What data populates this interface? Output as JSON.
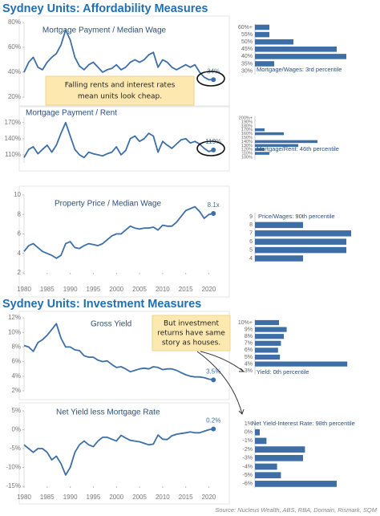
{
  "sections": [
    "Sydney Units: Affordability Measures",
    "Sydney Units: Investment Measures"
  ],
  "source": "Source: Nucleus Wealth, ABS, RBA, Domain, Rismark, SQM",
  "chart_data": [
    {
      "type": "line",
      "title": "Mortgage Payment / Median Wage",
      "color": "#3d6fa6",
      "x": [
        1980,
        1981,
        1982,
        1983,
        1984,
        1985,
        1986,
        1987,
        1988,
        1989,
        1990,
        1991,
        1992,
        1993,
        1994,
        1995,
        1996,
        1997,
        1998,
        1999,
        2000,
        2001,
        2002,
        2003,
        2004,
        2005,
        2006,
        2007,
        2008,
        2009,
        2010,
        2011,
        2012,
        2013,
        2014,
        2015,
        2016,
        2017,
        2018,
        2019,
        2020,
        2021
      ],
      "values": [
        40,
        48,
        52,
        44,
        42,
        48,
        52,
        55,
        62,
        74,
        66,
        52,
        45,
        42,
        46,
        48,
        44,
        40,
        42,
        43,
        46,
        42,
        44,
        48,
        50,
        48,
        50,
        54,
        56,
        44,
        50,
        48,
        44,
        42,
        44,
        46,
        44,
        46,
        40,
        36,
        34,
        34
      ],
      "value_labels": [
        null,
        null,
        null,
        null,
        null,
        null,
        null,
        null,
        null,
        null,
        null,
        null,
        null,
        null,
        null,
        null,
        null,
        null,
        null,
        null,
        null,
        null,
        null,
        null,
        null,
        null,
        null,
        null,
        null,
        null,
        null,
        null,
        null,
        null,
        null,
        null,
        null,
        null,
        null,
        null,
        null,
        "34%"
      ],
      "xlim": [
        1980,
        2022
      ],
      "ylim": [
        20,
        80
      ],
      "yticks": [
        {
          "value": 20,
          "label": "20%"
        },
        {
          "value": 40,
          "label": "40%"
        },
        {
          "value": 60,
          "label": "60%"
        },
        {
          "value": 80,
          "label": "80%"
        }
      ],
      "annotation": [
        "Falling rents and interest rates",
        "mean units look cheap."
      ]
    },
    {
      "type": "bar",
      "orientation": "horizontal",
      "color": "#3d6fa6",
      "categories": [
        "60%+",
        "55%",
        "50%",
        "45%",
        "40%",
        "35%",
        "30%"
      ],
      "values": [
        1.5,
        1.5,
        4,
        8.5,
        9.5,
        2,
        0
      ],
      "xlim": [
        0,
        10
      ],
      "annotation": "Mortgage/Wages: 3rd percentile"
    },
    {
      "type": "line",
      "title": "Mortgage Payment / Rent",
      "color": "#3d6fa6",
      "x": [
        1980,
        1981,
        1982,
        1983,
        1984,
        1985,
        1986,
        1987,
        1988,
        1989,
        1990,
        1991,
        1992,
        1993,
        1994,
        1995,
        1996,
        1997,
        1998,
        1999,
        2000,
        2001,
        2002,
        2003,
        2004,
        2005,
        2006,
        2007,
        2008,
        2009,
        2010,
        2011,
        2012,
        2013,
        2014,
        2015,
        2016,
        2017,
        2018,
        2019,
        2020,
        2021
      ],
      "values": [
        105,
        120,
        125,
        112,
        120,
        128,
        115,
        128,
        150,
        170,
        145,
        120,
        110,
        105,
        115,
        112,
        110,
        108,
        112,
        115,
        125,
        110,
        118,
        140,
        145,
        135,
        140,
        150,
        145,
        115,
        135,
        128,
        122,
        130,
        138,
        140,
        132,
        135,
        130,
        122,
        116,
        119
      ],
      "value_labels": [
        null,
        null,
        null,
        null,
        null,
        null,
        null,
        null,
        null,
        null,
        null,
        null,
        null,
        null,
        null,
        null,
        null,
        null,
        null,
        null,
        null,
        null,
        null,
        null,
        null,
        null,
        null,
        null,
        null,
        null,
        null,
        null,
        null,
        null,
        null,
        null,
        null,
        null,
        null,
        null,
        null,
        "119%"
      ],
      "xlim": [
        1980,
        2022
      ],
      "ylim": [
        95,
        180
      ],
      "yticks": [
        {
          "value": 110,
          "label": "110%"
        },
        {
          "value": 140,
          "label": "140%"
        },
        {
          "value": 170,
          "label": "170%"
        }
      ]
    },
    {
      "type": "bar",
      "orientation": "horizontal",
      "color": "#3d6fa6",
      "categories": [
        "200%+",
        "190%",
        "180%",
        "170%",
        "160%",
        "150%",
        "140%",
        "130%",
        "120%",
        "110%",
        "100%"
      ],
      "values": [
        0,
        0,
        0,
        1,
        3,
        0,
        6.5,
        4.5,
        1,
        1.5,
        0
      ],
      "xlim": [
        0,
        10
      ],
      "annotation": "Mortgage/Rent: 46th percentile"
    },
    {
      "type": "line",
      "title": "Property Price / Median Wage",
      "color": "#3d6fa6",
      "x": [
        1980,
        1981,
        1982,
        1983,
        1984,
        1985,
        1986,
        1987,
        1988,
        1989,
        1990,
        1991,
        1992,
        1993,
        1994,
        1995,
        1996,
        1997,
        1998,
        1999,
        2000,
        2001,
        2002,
        2003,
        2004,
        2005,
        2006,
        2007,
        2008,
        2009,
        2010,
        2011,
        2012,
        2013,
        2014,
        2015,
        2016,
        2017,
        2018,
        2019,
        2020,
        2021
      ],
      "values": [
        4.2,
        4.8,
        5,
        4.6,
        4.2,
        4,
        3.8,
        3.5,
        3.8,
        5,
        5.2,
        4.6,
        4.5,
        4.8,
        5,
        4.9,
        4.8,
        5,
        5.4,
        5.8,
        6,
        6,
        6.4,
        6.8,
        6.6,
        6.5,
        6.6,
        6.6,
        6.7,
        6.4,
        6.9,
        6.8,
        6.8,
        7.2,
        7.8,
        8.4,
        8.6,
        8.8,
        8.3,
        7.6,
        8,
        8.1
      ],
      "value_labels": [
        null,
        null,
        null,
        null,
        null,
        null,
        null,
        null,
        null,
        null,
        null,
        null,
        null,
        null,
        null,
        null,
        null,
        null,
        null,
        null,
        null,
        null,
        null,
        null,
        null,
        null,
        null,
        null,
        null,
        null,
        null,
        null,
        null,
        null,
        null,
        null,
        null,
        null,
        null,
        null,
        null,
        "8.1x"
      ],
      "xlim": [
        1980,
        2022
      ],
      "ylim": [
        2,
        10
      ],
      "yticks": [
        2,
        4,
        6,
        8,
        10
      ],
      "xticks": [
        1980,
        1985,
        1990,
        1995,
        2000,
        2005,
        2010,
        2015,
        2020
      ]
    },
    {
      "type": "bar",
      "orientation": "horizontal",
      "color": "#3d6fa6",
      "categories": [
        "9",
        "8",
        "7",
        "6",
        "5",
        "4"
      ],
      "values": [
        0,
        5,
        10,
        9.5,
        9.5,
        5
      ],
      "xlim": [
        0,
        10
      ],
      "annotation": "Price/Wages: 90th percentile"
    },
    {
      "type": "line",
      "title": "Gross Yield",
      "color": "#3d6fa6",
      "x": [
        1980,
        1981,
        1982,
        1983,
        1984,
        1985,
        1986,
        1987,
        1988,
        1989,
        1990,
        1991,
        1992,
        1993,
        1994,
        1995,
        1996,
        1997,
        1998,
        1999,
        2000,
        2001,
        2002,
        2003,
        2004,
        2005,
        2006,
        2007,
        2008,
        2009,
        2010,
        2011,
        2012,
        2013,
        2014,
        2015,
        2016,
        2017,
        2018,
        2019,
        2020,
        2021
      ],
      "values": [
        8.2,
        8,
        7.4,
        8.6,
        9,
        9.6,
        10.4,
        11.2,
        9.2,
        8,
        8,
        7.6,
        7.5,
        6.8,
        6.6,
        6.6,
        6.2,
        6,
        6.1,
        5.6,
        5.2,
        5.3,
        5,
        4.6,
        4.8,
        5,
        5.1,
        5,
        5.3,
        5.2,
        4.9,
        5,
        5,
        4.8,
        4.5,
        4.2,
        4,
        3.9,
        3.9,
        3.8,
        3.6,
        3.5
      ],
      "value_labels": [
        null,
        null,
        null,
        null,
        null,
        null,
        null,
        null,
        null,
        null,
        null,
        null,
        null,
        null,
        null,
        null,
        null,
        null,
        null,
        null,
        null,
        null,
        null,
        null,
        null,
        null,
        null,
        null,
        null,
        null,
        null,
        null,
        null,
        null,
        null,
        null,
        null,
        null,
        null,
        null,
        null,
        "3.5%"
      ],
      "xlim": [
        1980,
        2022
      ],
      "ylim": [
        2,
        12
      ],
      "yticks": [
        {
          "value": 2,
          "label": "2%"
        },
        {
          "value": 4,
          "label": "4%"
        },
        {
          "value": 6,
          "label": "6%"
        },
        {
          "value": 8,
          "label": "8%"
        },
        {
          "value": 10,
          "label": "10%"
        },
        {
          "value": 12,
          "label": "12%"
        }
      ],
      "annotation": [
        "But investment",
        "returns have same",
        "story as houses."
      ]
    },
    {
      "type": "bar",
      "orientation": "horizontal",
      "color": "#3d6fa6",
      "categories": [
        "10%+",
        "9%",
        "8%",
        "7%",
        "6%",
        "5%",
        "4%",
        "3%"
      ],
      "values": [
        2.5,
        3.3,
        3,
        2.7,
        2.4,
        2.6,
        9.6,
        0
      ],
      "xlim": [
        0,
        10
      ],
      "annotation": "Yield: 0th percentile"
    },
    {
      "type": "line",
      "title": "Net Yield less Mortgage Rate",
      "color": "#3d6fa6",
      "x": [
        1980,
        1981,
        1982,
        1983,
        1984,
        1985,
        1986,
        1987,
        1988,
        1989,
        1990,
        1991,
        1992,
        1993,
        1994,
        1995,
        1996,
        1997,
        1998,
        1999,
        2000,
        2001,
        2002,
        2003,
        2004,
        2005,
        2006,
        2007,
        2008,
        2009,
        2010,
        2011,
        2012,
        2013,
        2014,
        2015,
        2016,
        2017,
        2018,
        2019,
        2020,
        2021
      ],
      "values": [
        -4,
        -5,
        -6,
        -5,
        -5,
        -6,
        -8,
        -7,
        -9,
        -12,
        -10,
        -6,
        -4,
        -3,
        -4,
        -4.5,
        -3,
        -2,
        -2,
        -2.5,
        -3,
        -1.5,
        -2.2,
        -2.8,
        -3,
        -3.2,
        -3.6,
        -4,
        -3.8,
        -1.4,
        -2.5,
        -2.6,
        -1.6,
        -1.2,
        -1,
        -0.8,
        -0.6,
        -0.8,
        -0.8,
        -0.4,
        0,
        0.2
      ],
      "value_labels": [
        null,
        null,
        null,
        null,
        null,
        null,
        null,
        null,
        null,
        null,
        null,
        null,
        null,
        null,
        null,
        null,
        null,
        null,
        null,
        null,
        null,
        null,
        null,
        null,
        null,
        null,
        null,
        null,
        null,
        null,
        null,
        null,
        null,
        null,
        null,
        null,
        null,
        null,
        null,
        null,
        null,
        "0.2%"
      ],
      "xlim": [
        1980,
        2022
      ],
      "ylim": [
        -15,
        5
      ],
      "yticks": [
        {
          "value": -15,
          "label": "-15%"
        },
        {
          "value": -10,
          "label": "-10%"
        },
        {
          "value": -5,
          "label": "-5%"
        },
        {
          "value": 0,
          "label": "0%"
        },
        {
          "value": 5,
          "label": "5%"
        }
      ],
      "xticks": [
        1980,
        1985,
        1990,
        1995,
        2000,
        2005,
        2010,
        2015,
        2020
      ]
    },
    {
      "type": "bar",
      "orientation": "horizontal",
      "color": "#3d6fa6",
      "categories": [
        "1%",
        "0%",
        "-1%",
        "-2%",
        "-3%",
        "-4%",
        "-5%",
        "-6%"
      ],
      "values": [
        0,
        0.5,
        1.2,
        5.2,
        5,
        2.3,
        2.7,
        8.5
      ],
      "xlim": [
        0,
        10
      ],
      "annotation": "Net Yield-Interest Rate: 98th percentile"
    }
  ]
}
